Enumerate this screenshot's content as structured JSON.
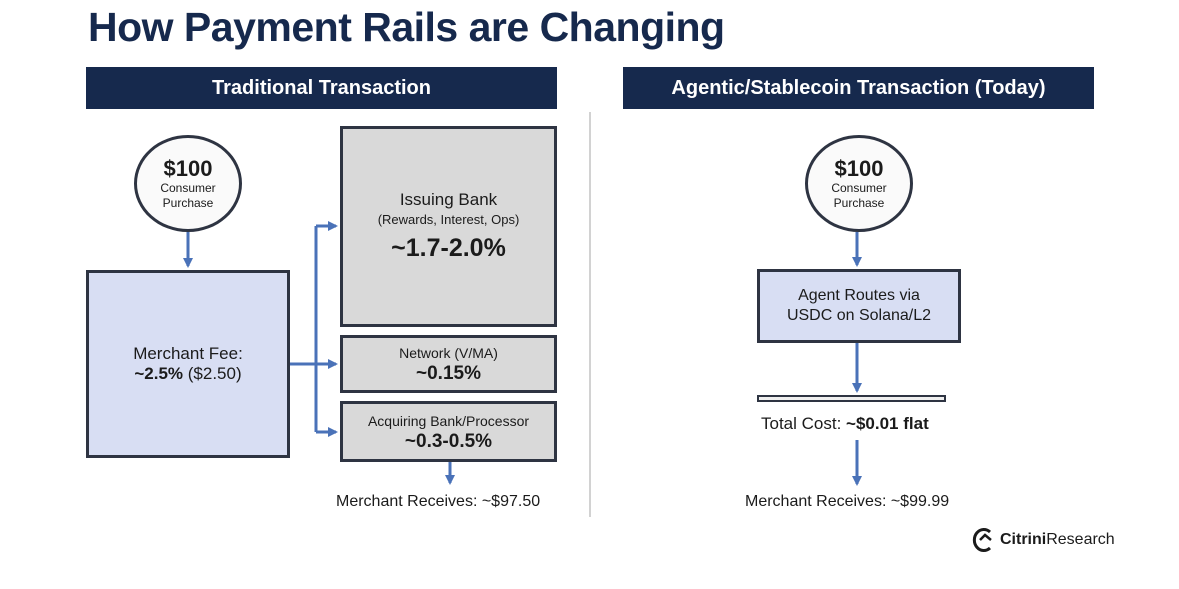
{
  "title": "How Payment Rails are Changing",
  "colors": {
    "banner": "#16294d",
    "arrow": "#4a72b8",
    "merchant_box": "#d8def3",
    "fee_box": "#d9d9d9"
  },
  "traditional": {
    "header": "Traditional Transaction",
    "purchase": {
      "amount": "$100",
      "line1": "Consumer",
      "line2": "Purchase"
    },
    "merchant_fee": {
      "label": "Merchant Fee:",
      "rate": "~2.5%",
      "amount": "($2.50)"
    },
    "issuing_bank": {
      "label": "Issuing Bank",
      "detail": "(Rewards, Interest, Ops)",
      "rate": "~1.7-2.0%"
    },
    "network": {
      "label": "Network (V/MA)",
      "rate": "~0.15%"
    },
    "acquiring": {
      "label": "Acquiring Bank/Processor",
      "rate": "~0.3-0.5%"
    },
    "merchant_receives": "Merchant Receives: ~$97.50"
  },
  "agentic": {
    "header": "Agentic/Stablecoin Transaction (Today)",
    "purchase": {
      "amount": "$100",
      "line1": "Consumer",
      "line2": "Purchase"
    },
    "route": {
      "line1": "Agent Routes via",
      "line2": "USDC on Solana/L2"
    },
    "total_cost": {
      "label": "Total Cost:",
      "value": "~$0.01 flat"
    },
    "merchant_receives": "Merchant Receives: ~$99.99"
  },
  "brand": {
    "prefix": "Citrini",
    "suffix": "Research",
    "icon": "citrini-logo-icon"
  }
}
